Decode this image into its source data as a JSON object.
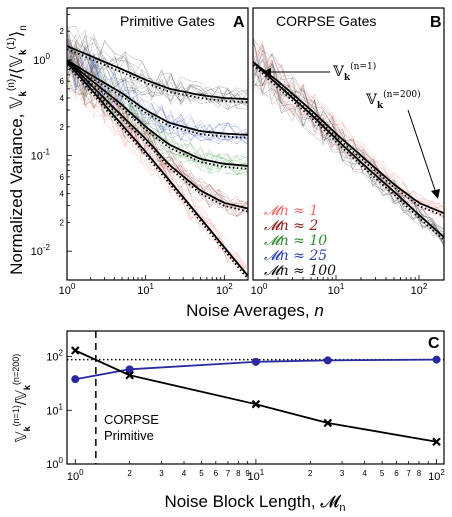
{
  "chart_data": [
    {
      "panel": "A",
      "type": "line",
      "title": "Primitive Gates",
      "ylabel": "Normalized Variance, 𝕍_k^(n)/⟨𝕍_k^(1)⟩_n",
      "xlabel": "Noise Averages, n",
      "x_scale": "log",
      "y_scale": "log",
      "xlim": [
        1,
        200
      ],
      "ylim": [
        0.005,
        3.5
      ],
      "x_ticks": [
        "10^0",
        "10^1",
        "10^2"
      ],
      "y_ticks": [
        "10^0",
        "10^-1",
        "10^-2"
      ],
      "series": [
        {
          "name": "𝓜n ≈ 1",
          "color": "#f08080",
          "x": [
            1,
            2,
            5,
            10,
            20,
            50,
            100,
            200
          ],
          "y": [
            0.95,
            0.5,
            0.21,
            0.11,
            0.055,
            0.022,
            0.011,
            0.0055
          ]
        },
        {
          "name": "𝓜n ≈ 2",
          "color": "#8b1a1a",
          "x": [
            1,
            2,
            5,
            10,
            20,
            50,
            100,
            200
          ],
          "y": [
            1.0,
            0.55,
            0.26,
            0.15,
            0.08,
            0.043,
            0.032,
            0.028
          ]
        },
        {
          "name": "𝓜n ≈ 10",
          "color": "#2e8b2e",
          "x": [
            1,
            2,
            5,
            10,
            20,
            50,
            100,
            200
          ],
          "y": [
            1.0,
            0.62,
            0.34,
            0.2,
            0.13,
            0.092,
            0.082,
            0.078
          ]
        },
        {
          "name": "𝓜n ≈ 25",
          "color": "#2a3fb0",
          "x": [
            1,
            2,
            5,
            10,
            20,
            50,
            100,
            200
          ],
          "y": [
            1.0,
            0.7,
            0.45,
            0.3,
            0.22,
            0.18,
            0.17,
            0.165
          ]
        },
        {
          "name": "𝓜n ≈ 100",
          "color": "#222222",
          "x": [
            1,
            2,
            5,
            10,
            20,
            50,
            100,
            200
          ],
          "y": [
            1.4,
            1.1,
            0.8,
            0.62,
            0.5,
            0.43,
            0.4,
            0.39
          ]
        }
      ]
    },
    {
      "panel": "B",
      "type": "line",
      "title": "CORPSE Gates",
      "x_scale": "log",
      "y_scale": "log",
      "xlim": [
        1,
        200
      ],
      "ylim": [
        0.005,
        3.5
      ],
      "x_ticks": [
        "10^0",
        "10^1",
        "10^2"
      ],
      "annotations": [
        "𝕍_k^(n=1)",
        "𝕍_k^(n=200)"
      ],
      "series": [
        {
          "name": "𝓜n ≈ 1",
          "color": "#f08080",
          "x": [
            1,
            2,
            5,
            10,
            20,
            50,
            100,
            200
          ],
          "y": [
            0.95,
            0.6,
            0.3,
            0.17,
            0.1,
            0.05,
            0.032,
            0.025
          ]
        },
        {
          "name": "𝓜n ≈ 100",
          "color": "#222222",
          "x": [
            1,
            2,
            5,
            10,
            20,
            50,
            100,
            200
          ],
          "y": [
            0.95,
            0.55,
            0.27,
            0.15,
            0.085,
            0.042,
            0.024,
            0.014
          ]
        }
      ]
    },
    {
      "panel": "C",
      "type": "line",
      "ylabel": "𝕍_k^(n=1)/𝕍_k^(n=200)",
      "xlabel": "Noise Block Length, 𝓜n",
      "x_scale": "log",
      "y_scale": "log",
      "xlim": [
        0.9,
        110
      ],
      "ylim": [
        1,
        300
      ],
      "x_ticks": [
        "10^0",
        "10^1",
        "10^2"
      ],
      "y_ticks": [
        "10^0",
        "10^1",
        "10^2"
      ],
      "dashed_vline_x": 1.3,
      "dotted_hline_y": 88,
      "series": [
        {
          "name": "CORPSE",
          "color": "#2a2aa0",
          "x": [
            1,
            2,
            10,
            25,
            100
          ],
          "y": [
            38,
            58,
            80,
            85,
            88
          ]
        },
        {
          "name": "Primitive",
          "color": "#000000",
          "x": [
            1,
            2,
            10,
            25,
            100
          ],
          "y": [
            130,
            45,
            13,
            5.8,
            2.6
          ]
        }
      ]
    }
  ],
  "panels": {
    "a": {
      "title": "Primitive Gates",
      "letter": "A"
    },
    "b": {
      "title": "CORPSE Gates",
      "letter": "B"
    },
    "c": {
      "letter": "C"
    }
  },
  "legend_a": [
    "𝓜n ≈ 1",
    "𝓜n ≈ 2",
    "𝓜n ≈ 10",
    "𝓜n ≈ 25",
    "𝓜n ≈ 100"
  ],
  "legend_c": [
    "CORPSE",
    "Primitive"
  ],
  "labels": {
    "top_y": "Normalized Variance, 𝕍",
    "top_x": "Noise Averages, ",
    "top_x_italic": "n",
    "bottom_x": "Noise Block Length, 𝓜",
    "bottom_x_sub": "n",
    "ann1": "𝕍",
    "ann2": "𝕍"
  }
}
